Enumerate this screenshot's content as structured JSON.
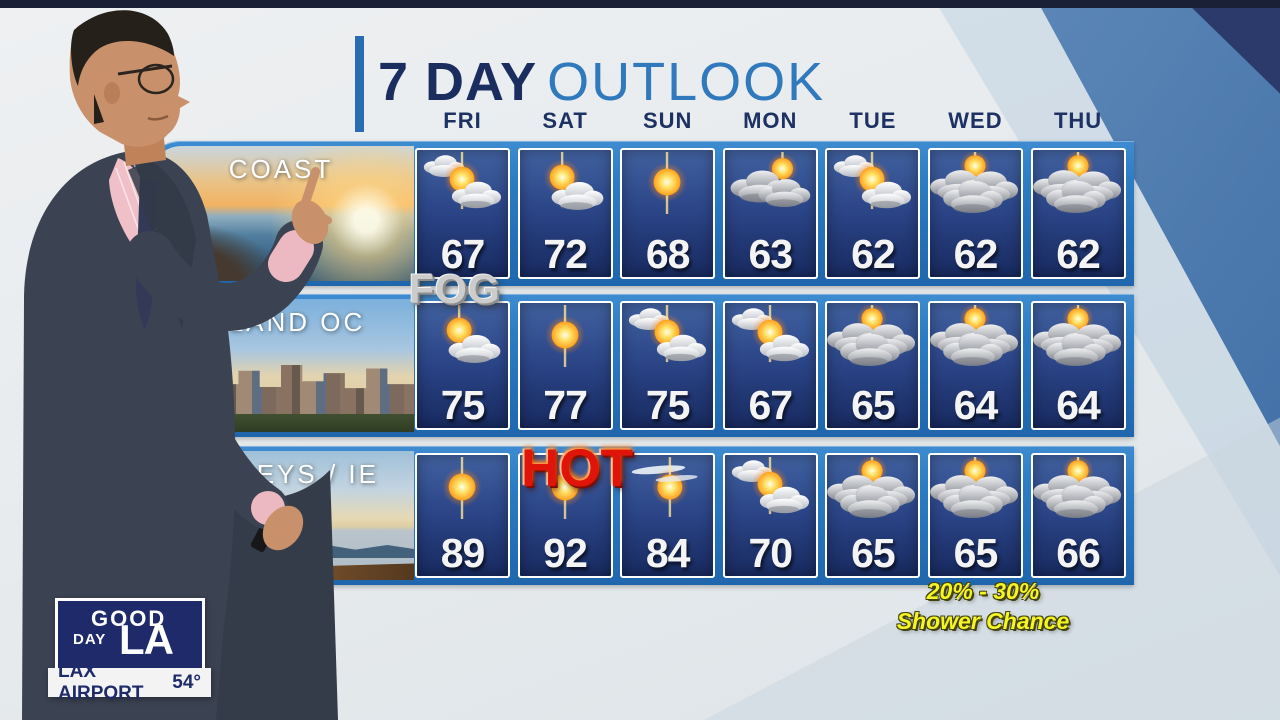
{
  "header": {
    "title_bold": "7 DAY",
    "title_light": "OUTLOOK"
  },
  "forecast": {
    "days": [
      "FRI",
      "SAT",
      "SUN",
      "MON",
      "TUE",
      "WED",
      "THU"
    ],
    "regions": [
      {
        "label": "COAST",
        "scene": "coast",
        "photo": "ocean pier at sunrise",
        "temps": [
          "67",
          "72",
          "68",
          "63",
          "62",
          "62",
          "62"
        ],
        "icons": [
          "partly-cloudy",
          "mostly-sunny",
          "sunny",
          "mostly-cloudy",
          "partly-cloudy",
          "cloudy",
          "cloudy"
        ]
      },
      {
        "label": "INLAND OC",
        "scene": "city",
        "photo": "downtown skyline",
        "temps": [
          "75",
          "77",
          "75",
          "67",
          "65",
          "64",
          "64"
        ],
        "icons": [
          "mostly-sunny",
          "sunny",
          "partly-cloudy",
          "partly-cloudy",
          "cloudy",
          "cloudy",
          "cloudy"
        ]
      },
      {
        "label": "VALLEYS / IE",
        "scene": "valley",
        "photo": "valley overlook at dusk",
        "temps": [
          "89",
          "92",
          "84",
          "70",
          "65",
          "65",
          "66"
        ],
        "icons": [
          "sunny",
          "sunny",
          "hazy-sun",
          "partly-cloudy",
          "cloudy",
          "cloudy",
          "cloudy"
        ]
      }
    ]
  },
  "overlays": {
    "fog": "FOG",
    "hot": "HOT",
    "shower_line1": "20% - 30%",
    "shower_line2": "Shower Chance"
  },
  "bug": {
    "good": "GOOD",
    "day": "DAY",
    "la": "LA",
    "ticker_label": "LAX AIRPORT",
    "ticker_temp": "54°"
  },
  "chart_data": {
    "type": "table",
    "title": "7 DAY OUTLOOK",
    "columns": [
      "FRI",
      "SAT",
      "SUN",
      "MON",
      "TUE",
      "WED",
      "THU"
    ],
    "rows": [
      {
        "label": "COAST",
        "values": [
          67,
          72,
          68,
          63,
          62,
          62,
          62
        ]
      },
      {
        "label": "INLAND OC",
        "values": [
          75,
          77,
          75,
          67,
          65,
          64,
          64
        ]
      },
      {
        "label": "VALLEYS / IE",
        "values": [
          89,
          92,
          84,
          70,
          65,
          65,
          66
        ]
      }
    ]
  },
  "colors": {
    "title_navy": "#1b2c5f",
    "title_blue": "#3079bd",
    "band_blue": "#2b7cc4",
    "cell_blue_top": "#41619f",
    "cell_blue_bottom": "#182a60",
    "overlay_yellow": "#f4f426",
    "overlay_red": "#e01408",
    "overlay_silver": "#cccccc",
    "logo_navy": "#1e2a6a"
  }
}
